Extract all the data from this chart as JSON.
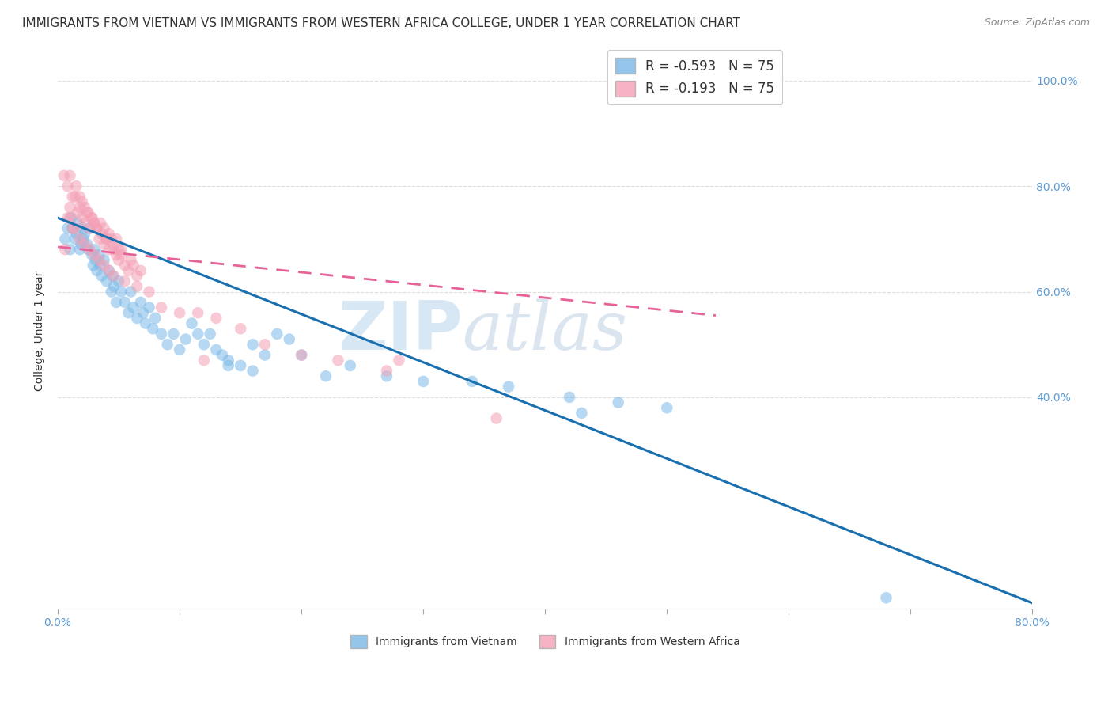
{
  "title": "IMMIGRANTS FROM VIETNAM VS IMMIGRANTS FROM WESTERN AFRICA COLLEGE, UNDER 1 YEAR CORRELATION CHART",
  "source": "Source: ZipAtlas.com",
  "ylabel": "College, Under 1 year",
  "x_range": [
    0.0,
    0.8
  ],
  "y_range": [
    0.0,
    1.05
  ],
  "legend_r1": "R = -0.593",
  "legend_n1": "N = 75",
  "legend_r2": "R = -0.193",
  "legend_n2": "N = 75",
  "color_vietnam": "#7ab8e8",
  "color_western_africa": "#f4a0b5",
  "color_line_vietnam": "#1a6faf",
  "color_line_western_africa": "#e8629a",
  "grid_color": "#dddddd",
  "watermark_zip": "ZIP",
  "watermark_atlas": "atlas",
  "vietnam_line_x": [
    0.0,
    0.8
  ],
  "vietnam_line_y": [
    0.74,
    0.01
  ],
  "western_africa_line_x": [
    0.0,
    0.54
  ],
  "western_africa_line_y": [
    0.685,
    0.555
  ],
  "title_fontsize": 11,
  "axis_label_fontsize": 10,
  "tick_fontsize": 10,
  "legend_fontsize": 12,
  "xtick_positions": [
    0.0,
    0.1,
    0.2,
    0.3,
    0.4,
    0.5,
    0.6,
    0.7,
    0.8
  ],
  "xtick_labels": [
    "0.0%",
    "",
    "",
    "",
    "",
    "",
    "",
    "",
    "80.0%"
  ],
  "ytick_right": [
    0.4,
    0.6,
    0.8,
    1.0
  ],
  "ytick_right_labels": [
    "40.0%",
    "60.0%",
    "80.0%",
    "100.0%"
  ],
  "bottom_legend": [
    "Immigrants from Vietnam",
    "Immigrants from Western Africa"
  ],
  "vn_x": [
    0.006,
    0.008,
    0.01,
    0.011,
    0.012,
    0.014,
    0.015,
    0.016,
    0.018,
    0.019,
    0.02,
    0.021,
    0.022,
    0.024,
    0.025,
    0.026,
    0.028,
    0.029,
    0.03,
    0.031,
    0.032,
    0.034,
    0.035,
    0.036,
    0.038,
    0.04,
    0.042,
    0.044,
    0.045,
    0.046,
    0.048,
    0.05,
    0.052,
    0.055,
    0.058,
    0.06,
    0.062,
    0.065,
    0.068,
    0.07,
    0.072,
    0.075,
    0.078,
    0.08,
    0.085,
    0.09,
    0.095,
    0.1,
    0.105,
    0.11,
    0.115,
    0.12,
    0.125,
    0.13,
    0.135,
    0.14,
    0.15,
    0.16,
    0.17,
    0.18,
    0.2,
    0.22,
    0.24,
    0.27,
    0.3,
    0.34,
    0.37,
    0.42,
    0.46,
    0.5,
    0.14,
    0.16,
    0.19,
    0.43,
    0.68
  ],
  "vn_y": [
    0.7,
    0.72,
    0.68,
    0.74,
    0.72,
    0.7,
    0.71,
    0.73,
    0.68,
    0.69,
    0.72,
    0.7,
    0.71,
    0.69,
    0.68,
    0.72,
    0.67,
    0.65,
    0.68,
    0.66,
    0.64,
    0.67,
    0.65,
    0.63,
    0.66,
    0.62,
    0.64,
    0.6,
    0.63,
    0.61,
    0.58,
    0.62,
    0.6,
    0.58,
    0.56,
    0.6,
    0.57,
    0.55,
    0.58,
    0.56,
    0.54,
    0.57,
    0.53,
    0.55,
    0.52,
    0.5,
    0.52,
    0.49,
    0.51,
    0.54,
    0.52,
    0.5,
    0.52,
    0.49,
    0.48,
    0.47,
    0.46,
    0.5,
    0.48,
    0.52,
    0.48,
    0.44,
    0.46,
    0.44,
    0.43,
    0.43,
    0.42,
    0.4,
    0.39,
    0.38,
    0.46,
    0.45,
    0.51,
    0.37,
    0.02
  ],
  "wa_x": [
    0.006,
    0.008,
    0.01,
    0.012,
    0.014,
    0.016,
    0.018,
    0.02,
    0.022,
    0.024,
    0.026,
    0.028,
    0.03,
    0.032,
    0.034,
    0.036,
    0.038,
    0.04,
    0.042,
    0.044,
    0.046,
    0.048,
    0.05,
    0.052,
    0.055,
    0.058,
    0.06,
    0.062,
    0.065,
    0.068,
    0.005,
    0.008,
    0.01,
    0.012,
    0.015,
    0.018,
    0.02,
    0.022,
    0.025,
    0.028,
    0.03,
    0.032,
    0.035,
    0.038,
    0.04,
    0.042,
    0.045,
    0.048,
    0.05,
    0.052,
    0.01,
    0.014,
    0.018,
    0.022,
    0.026,
    0.03,
    0.034,
    0.038,
    0.042,
    0.046,
    0.055,
    0.065,
    0.075,
    0.085,
    0.1,
    0.115,
    0.13,
    0.15,
    0.17,
    0.2,
    0.23,
    0.27,
    0.12,
    0.28,
    0.36
  ],
  "wa_y": [
    0.68,
    0.74,
    0.76,
    0.72,
    0.78,
    0.75,
    0.76,
    0.74,
    0.73,
    0.75,
    0.72,
    0.74,
    0.73,
    0.72,
    0.7,
    0.71,
    0.69,
    0.7,
    0.68,
    0.7,
    0.68,
    0.67,
    0.66,
    0.68,
    0.65,
    0.64,
    0.66,
    0.65,
    0.63,
    0.64,
    0.82,
    0.8,
    0.82,
    0.78,
    0.8,
    0.78,
    0.77,
    0.76,
    0.75,
    0.74,
    0.73,
    0.72,
    0.73,
    0.72,
    0.7,
    0.71,
    0.69,
    0.7,
    0.68,
    0.67,
    0.74,
    0.72,
    0.7,
    0.69,
    0.68,
    0.67,
    0.66,
    0.65,
    0.64,
    0.63,
    0.62,
    0.61,
    0.6,
    0.57,
    0.56,
    0.56,
    0.55,
    0.53,
    0.5,
    0.48,
    0.47,
    0.45,
    0.47,
    0.47,
    0.36
  ]
}
